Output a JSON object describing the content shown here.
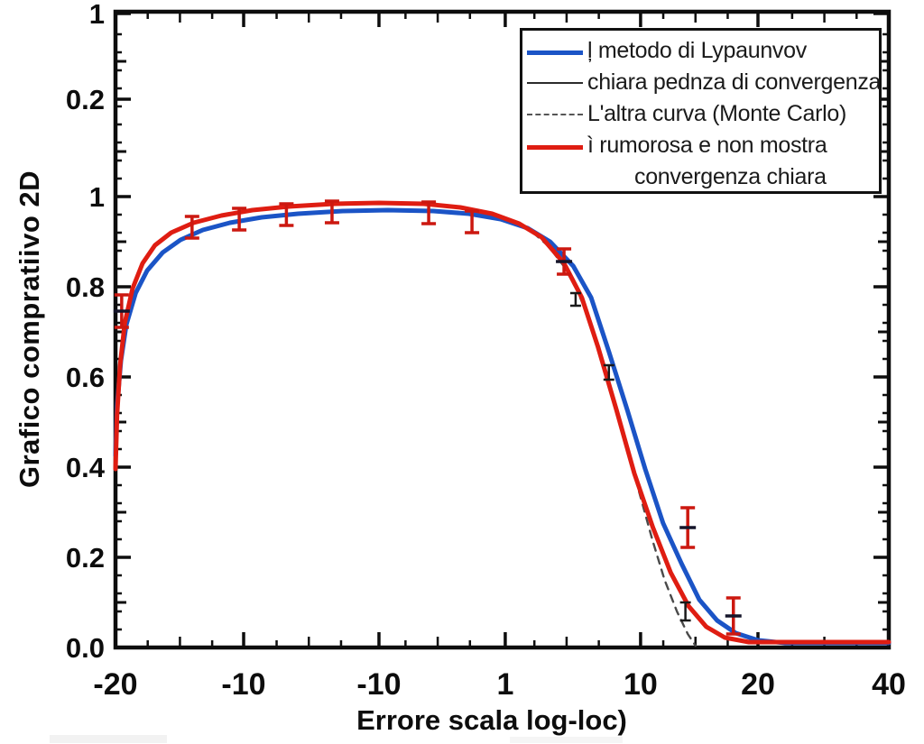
{
  "figure": {
    "background": "#ffffff",
    "axis_color": "#0d0d0d"
  },
  "chart_data": {
    "type": "line",
    "title": "",
    "xlabel": "Errore scala log-loc)",
    "ylabel": "Grafico compratiivo 2D",
    "grid": false,
    "legend_position": "top-right",
    "x_ticks": [
      {
        "label": "-20",
        "u": 0.0
      },
      {
        "label": "-10",
        "u": 0.1657
      },
      {
        "label": "-10",
        "u": 0.3407
      },
      {
        "label": "1",
        "u": 0.504
      },
      {
        "label": "10",
        "u": 0.679
      },
      {
        "label": "20",
        "u": 0.8308
      },
      {
        "label": "40",
        "u": 1.0
      }
    ],
    "y_ticks": [
      {
        "label": "0.0",
        "v": 0.0
      },
      {
        "label": "0.2",
        "v": 0.2
      },
      {
        "label": "0.4",
        "v": 0.4
      },
      {
        "label": "0.6",
        "v": 0.6
      },
      {
        "label": "0.8",
        "v": 0.8
      },
      {
        "label": "1",
        "v": 1.0
      },
      {
        "label": "0.2",
        "v": 1.216
      },
      {
        "label": "1",
        "v": 1.406
      }
    ],
    "y_axis_top_value": 1.41,
    "legend": {
      "entries": [
        {
          "label": "ļ metodo di Lypaunvov",
          "color": "#1b54c6",
          "style": "solid",
          "weight": 5
        },
        {
          "label": "chiara pednza di convergenza",
          "color": "#2b2b2b",
          "style": "solid",
          "weight": 2.5
        },
        {
          "label": "L'altra curva (Monte Carlo)",
          "color": "#555555",
          "style": "dashed",
          "weight": 2
        },
        {
          "label": "ì rumorosa e non mostra",
          "label2": "convergenza chiara",
          "color": "#df1d12",
          "style": "solid",
          "weight": 5
        }
      ]
    },
    "series": [
      {
        "name": "dashed-monte-carlo",
        "color": "#4a4a4a",
        "style": "dashed",
        "width": 2.4,
        "points": [
          [
            0.54,
            0.92
          ],
          [
            0.56,
            0.89
          ],
          [
            0.58,
            0.845
          ],
          [
            0.596,
            0.796
          ],
          [
            0.612,
            0.73
          ],
          [
            0.628,
            0.65
          ],
          [
            0.645,
            0.55
          ],
          [
            0.662,
            0.44
          ],
          [
            0.678,
            0.34
          ],
          [
            0.694,
            0.24
          ],
          [
            0.71,
            0.15
          ],
          [
            0.726,
            0.08
          ],
          [
            0.74,
            0.03
          ],
          [
            0.75,
            0.004
          ]
        ]
      },
      {
        "name": "blue-curve",
        "color": "#1b54c6",
        "style": "solid",
        "width": 5,
        "points": [
          [
            0.0,
            0.426
          ],
          [
            0.002,
            0.536
          ],
          [
            0.007,
            0.636
          ],
          [
            0.014,
            0.716
          ],
          [
            0.026,
            0.786
          ],
          [
            0.041,
            0.836
          ],
          [
            0.061,
            0.876
          ],
          [
            0.084,
            0.904
          ],
          [
            0.113,
            0.926
          ],
          [
            0.148,
            0.942
          ],
          [
            0.189,
            0.954
          ],
          [
            0.236,
            0.962
          ],
          [
            0.294,
            0.968
          ],
          [
            0.352,
            0.97
          ],
          [
            0.411,
            0.968
          ],
          [
            0.457,
            0.962
          ],
          [
            0.498,
            0.95
          ],
          [
            0.533,
            0.93
          ],
          [
            0.562,
            0.9
          ],
          [
            0.592,
            0.846
          ],
          [
            0.615,
            0.776
          ],
          [
            0.638,
            0.656
          ],
          [
            0.662,
            0.526
          ],
          [
            0.685,
            0.396
          ],
          [
            0.708,
            0.276
          ],
          [
            0.732,
            0.186
          ],
          [
            0.755,
            0.106
          ],
          [
            0.778,
            0.06
          ],
          [
            0.802,
            0.032
          ],
          [
            0.831,
            0.016
          ],
          [
            0.866,
            0.01
          ],
          [
            0.92,
            0.01
          ],
          [
            1.0,
            0.01
          ]
        ]
      },
      {
        "name": "red-curve",
        "color": "#df1d12",
        "style": "solid",
        "width": 5,
        "points": [
          [
            0.0,
            0.396
          ],
          [
            0.002,
            0.516
          ],
          [
            0.006,
            0.626
          ],
          [
            0.012,
            0.72
          ],
          [
            0.022,
            0.796
          ],
          [
            0.035,
            0.852
          ],
          [
            0.051,
            0.892
          ],
          [
            0.072,
            0.92
          ],
          [
            0.101,
            0.942
          ],
          [
            0.137,
            0.958
          ],
          [
            0.177,
            0.97
          ],
          [
            0.224,
            0.978
          ],
          [
            0.283,
            0.984
          ],
          [
            0.341,
            0.986
          ],
          [
            0.399,
            0.984
          ],
          [
            0.446,
            0.976
          ],
          [
            0.487,
            0.962
          ],
          [
            0.522,
            0.94
          ],
          [
            0.551,
            0.91
          ],
          [
            0.58,
            0.852
          ],
          [
            0.603,
            0.776
          ],
          [
            0.624,
            0.666
          ],
          [
            0.648,
            0.526
          ],
          [
            0.671,
            0.386
          ],
          [
            0.695,
            0.266
          ],
          [
            0.718,
            0.166
          ],
          [
            0.741,
            0.092
          ],
          [
            0.764,
            0.046
          ],
          [
            0.788,
            0.022
          ],
          [
            0.819,
            0.012
          ],
          [
            0.866,
            0.012
          ],
          [
            0.92,
            0.012
          ],
          [
            1.0,
            0.012
          ]
        ]
      }
    ],
    "error_bars": [
      {
        "u": 0.008,
        "v": 0.746,
        "e": 0.036,
        "color": "red"
      },
      {
        "u": 0.099,
        "v": 0.932,
        "e": 0.024,
        "color": "red"
      },
      {
        "u": 0.16,
        "v": 0.95,
        "e": 0.024,
        "color": "red"
      },
      {
        "u": 0.221,
        "v": 0.96,
        "e": 0.024,
        "color": "red"
      },
      {
        "u": 0.28,
        "v": 0.966,
        "e": 0.024,
        "color": "red"
      },
      {
        "u": 0.405,
        "v": 0.964,
        "e": 0.024,
        "color": "red"
      },
      {
        "u": 0.461,
        "v": 0.944,
        "e": 0.024,
        "color": "red"
      },
      {
        "u": 0.58,
        "v": 0.856,
        "e": 0.028,
        "color": "red"
      },
      {
        "u": 0.595,
        "v": 0.772,
        "e": 0.014,
        "color": "black"
      },
      {
        "u": 0.638,
        "v": 0.61,
        "e": 0.016,
        "color": "black"
      },
      {
        "u": 0.74,
        "v": 0.266,
        "e": 0.044,
        "color": "red"
      },
      {
        "u": 0.737,
        "v": 0.08,
        "e": 0.02,
        "color": "black"
      },
      {
        "u": 0.799,
        "v": 0.07,
        "e": 0.04,
        "color": "red"
      }
    ]
  }
}
